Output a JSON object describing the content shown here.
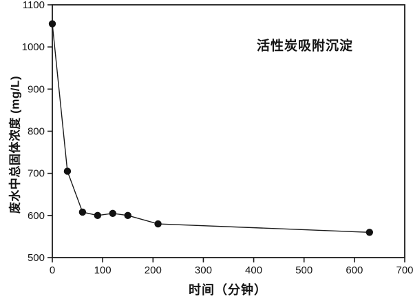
{
  "chart_data": {
    "type": "line",
    "title": "",
    "annotation": "活性炭吸附沉淀",
    "xlabel": "时间（分钟）",
    "ylabel": "废水中总固体浓度 (mg/L)",
    "x": [
      0,
      30,
      60,
      90,
      120,
      150,
      210,
      630
    ],
    "y": [
      1055,
      705,
      608,
      600,
      605,
      600,
      580,
      560
    ],
    "xlim": [
      0,
      700
    ],
    "ylim": [
      500,
      1100
    ],
    "x_ticks": [
      0,
      100,
      200,
      300,
      400,
      500,
      600,
      700
    ],
    "y_ticks": [
      500,
      600,
      700,
      800,
      900,
      1000,
      1100
    ],
    "grid": false,
    "legend": "none",
    "marker": "filled-circle",
    "colors": {
      "line": "#1a1a1a",
      "marker": "#111111",
      "frame": "#1a1a1a",
      "text": "#141414",
      "background": "#ffffff"
    }
  }
}
